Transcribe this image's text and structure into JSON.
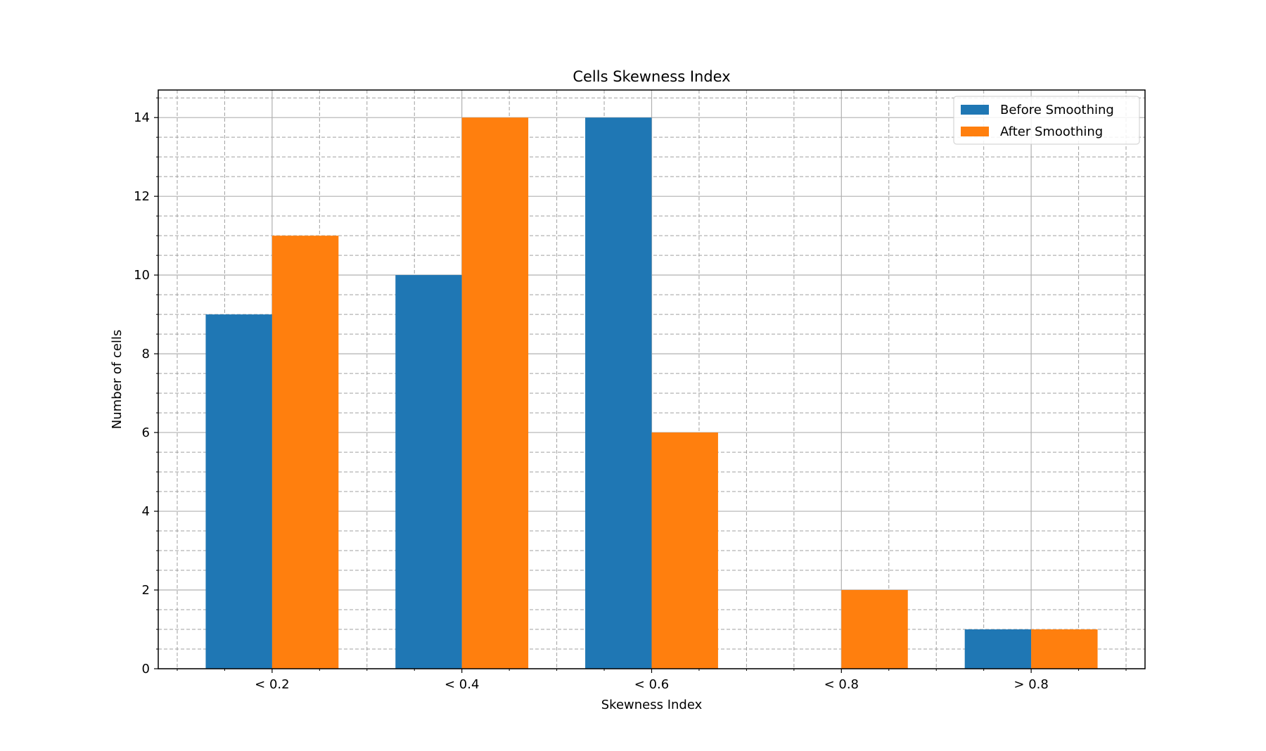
{
  "chart_data": {
    "type": "bar",
    "title": "Cells Skewness Index",
    "xlabel": "Skewness Index",
    "ylabel": "Number of cells",
    "categories": [
      "< 0.2",
      "< 0.4",
      "< 0.6",
      "< 0.8",
      "> 0.8"
    ],
    "series": [
      {
        "name": "Before Smoothing",
        "color": "#1f77b4",
        "values": [
          9,
          10,
          14,
          0,
          1
        ]
      },
      {
        "name": "After Smoothing",
        "color": "#ff7f0e",
        "values": [
          11,
          14,
          6,
          2,
          1
        ]
      }
    ],
    "ylim": [
      0,
      14.7
    ],
    "yticks": [
      0,
      2,
      4,
      6,
      8,
      10,
      12,
      14
    ],
    "grid": true,
    "minor_grid": true,
    "legend_position": "top-right"
  }
}
